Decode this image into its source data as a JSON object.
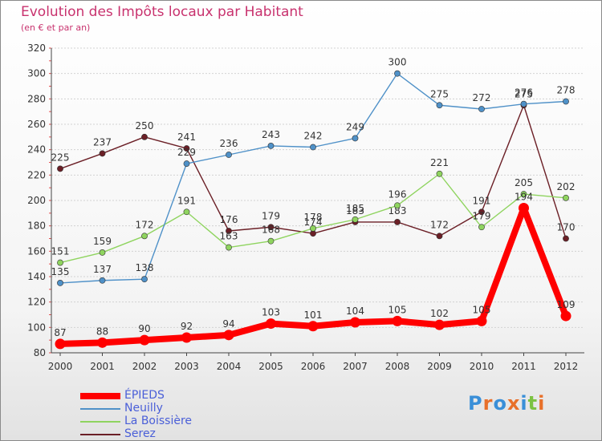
{
  "chart_data": {
    "type": "line",
    "title": "Evolution des Impôts locaux par Habitant",
    "subtitle": "(en € et par an)",
    "x": [
      "2000",
      "2001",
      "2002",
      "2003",
      "2004",
      "2005",
      "2006",
      "2007",
      "2008",
      "2009",
      "2010",
      "2011",
      "2012"
    ],
    "ylim": [
      80,
      320
    ],
    "yticks": [
      80,
      100,
      120,
      140,
      160,
      180,
      200,
      220,
      240,
      260,
      280,
      300,
      320
    ],
    "grid": true,
    "legend_position": "bottom-left",
    "series": [
      {
        "name": "ÉPIEDS",
        "color": "#ff0000",
        "values": [
          87,
          88,
          90,
          92,
          94,
          103,
          101,
          104,
          105,
          102,
          105,
          194,
          109
        ]
      },
      {
        "name": "Neuilly",
        "color": "#4f91c8",
        "values": [
          135,
          137,
          138,
          229,
          236,
          243,
          242,
          249,
          300,
          275,
          272,
          276,
          278
        ]
      },
      {
        "name": "La Boissière",
        "color": "#8fd45f",
        "values": [
          151,
          159,
          172,
          191,
          163,
          168,
          178,
          185,
          196,
          221,
          179,
          205,
          202
        ]
      },
      {
        "name": "Serez",
        "color": "#6b1f26",
        "values": [
          225,
          237,
          250,
          241,
          176,
          179,
          174,
          183,
          183,
          172,
          191,
          275,
          170
        ]
      }
    ]
  },
  "logo": {
    "text": "Proxiti",
    "colors": [
      "#3a8fd8",
      "#e8702a",
      "#3a8fd8",
      "#e8702a",
      "#3a8fd8",
      "#7cc242",
      "#e8702a"
    ]
  }
}
